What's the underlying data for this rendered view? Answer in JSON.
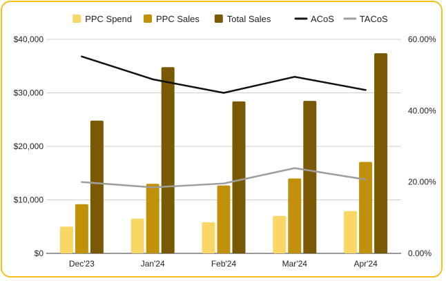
{
  "chart_data": {
    "type": "bar",
    "title": "",
    "categories": [
      "Dec'23",
      "Jan'24",
      "Feb'24",
      "Mar'24",
      "Apr'24"
    ],
    "series": [
      {
        "name": "PPC Spend",
        "kind": "bar",
        "axis": "left",
        "color": "#FAD667",
        "values": [
          5000,
          6500,
          5800,
          7000,
          7900
        ]
      },
      {
        "name": "PPC Sales",
        "kind": "bar",
        "axis": "left",
        "color": "#C1910C",
        "values": [
          9200,
          13000,
          12700,
          14000,
          17100
        ]
      },
      {
        "name": "Total Sales",
        "kind": "bar",
        "axis": "left",
        "color": "#7A5904",
        "values": [
          24800,
          34800,
          28400,
          28500,
          37400
        ]
      },
      {
        "name": "ACoS",
        "kind": "line",
        "axis": "right",
        "color": "#111111",
        "values": [
          55.2,
          48.8,
          45.0,
          49.5,
          45.8
        ]
      },
      {
        "name": "TACoS",
        "kind": "line",
        "axis": "right",
        "color": "#9E9E9E",
        "values": [
          20.0,
          18.5,
          19.6,
          23.9,
          20.7
        ]
      }
    ],
    "y_left": {
      "min": 0,
      "max": 40000,
      "ticks": [
        0,
        10000,
        20000,
        30000,
        40000
      ],
      "tick_labels": [
        "$0",
        "$10,000",
        "$20,000",
        "$30,000",
        "$40,000"
      ]
    },
    "y_right": {
      "min": 0,
      "max": 60,
      "ticks": [
        0,
        20,
        40,
        60
      ],
      "tick_labels": [
        "0.00%",
        "20.00%",
        "40.00%",
        "60.00%"
      ]
    },
    "xlabel": "",
    "ylabel": "",
    "grid": true,
    "legend_position": "top"
  }
}
